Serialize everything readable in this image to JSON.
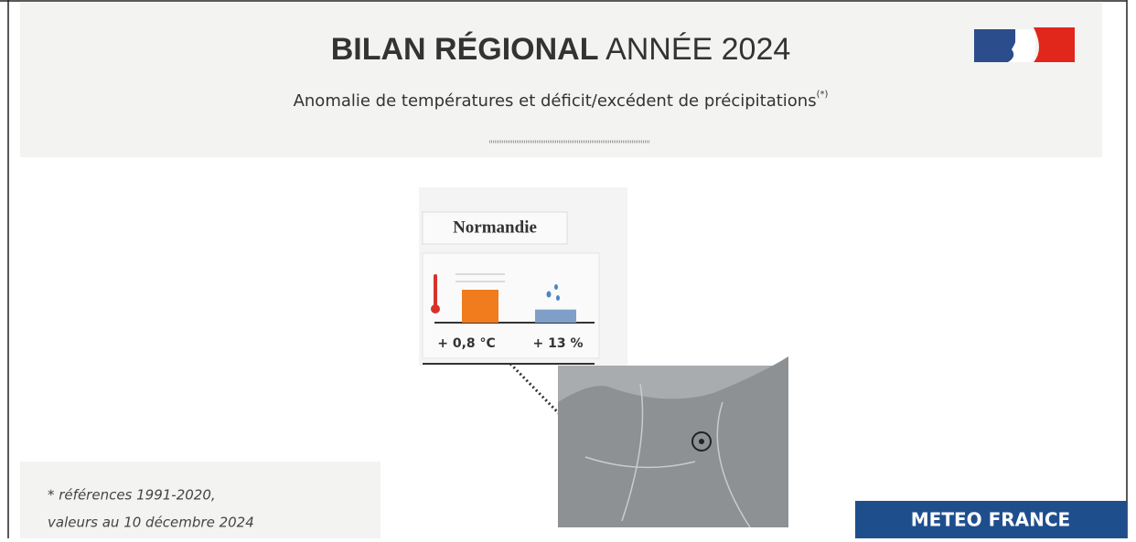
{
  "header": {
    "title_bold": "BILAN RÉGIONAL",
    "title_rest": "ANNÉE 2024",
    "subtitle": "Anomalie de températures et déficit/excédent de précipitations",
    "subtitle_note": "(*)"
  },
  "chart_data": {
    "type": "bar",
    "title": "Normandie",
    "series": [
      {
        "name": "température",
        "color": "#f07c1e",
        "values": [
          0.8
        ],
        "value_labels": [
          "+ 0,8 °C"
        ]
      },
      {
        "name": "précipitations",
        "color": "#7f9fc9",
        "values": [
          13
        ],
        "value_labels": [
          "+ 13 %"
        ]
      }
    ]
  },
  "footnote": [
    "* références 1991-2020,",
    "valeurs au 10 décembre 2024"
  ],
  "footer": {
    "brand": "METEO FRANCE"
  }
}
